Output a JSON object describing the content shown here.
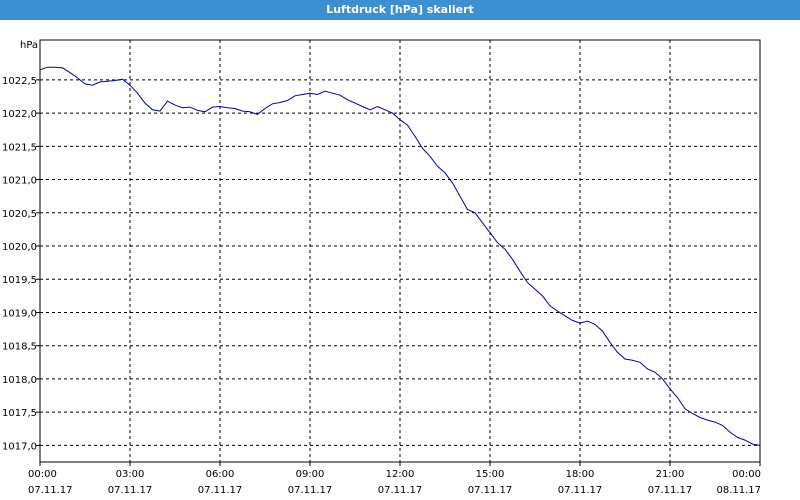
{
  "chart_data": {
    "type": "line",
    "title": "Luftdruck [hPa] skaliert",
    "ylabel": "hPa",
    "ylim": [
      1016.75,
      1023.1
    ],
    "xlim_hours": [
      0,
      24
    ],
    "grid": true,
    "y_ticks": [
      "1017,0",
      "1017,5",
      "1018,0",
      "1018,5",
      "1019,0",
      "1019,5",
      "1020,0",
      "1020,5",
      "1021,0",
      "1021,5",
      "1022,0",
      "1022,5"
    ],
    "y_tick_values": [
      1017.0,
      1017.5,
      1018.0,
      1018.5,
      1019.0,
      1019.5,
      1020.0,
      1020.5,
      1021.0,
      1021.5,
      1022.0,
      1022.5
    ],
    "x_ticks": [
      {
        "time": "00:00",
        "date": "07.11.17"
      },
      {
        "time": "03:00",
        "date": "07.11.17"
      },
      {
        "time": "06:00",
        "date": "07.11.17"
      },
      {
        "time": "09:00",
        "date": "07.11.17"
      },
      {
        "time": "12:00",
        "date": "07.11.17"
      },
      {
        "time": "15:00",
        "date": "07.11.17"
      },
      {
        "time": "18:00",
        "date": "07.11.17"
      },
      {
        "time": "21:00",
        "date": "07.11.17"
      },
      {
        "time": "00:00",
        "date": "08.11.17"
      }
    ],
    "series": [
      {
        "color": "#0000aa",
        "x_hours": [
          0.0,
          0.25,
          0.5,
          0.75,
          1.0,
          1.25,
          1.5,
          1.75,
          2.0,
          2.25,
          2.5,
          2.75,
          3.0,
          3.25,
          3.5,
          3.75,
          4.0,
          4.25,
          4.5,
          4.75,
          5.0,
          5.25,
          5.5,
          5.75,
          6.0,
          6.25,
          6.5,
          6.75,
          7.0,
          7.25,
          7.5,
          7.75,
          8.0,
          8.25,
          8.5,
          8.75,
          9.0,
          9.25,
          9.5,
          9.75,
          10.0,
          10.25,
          10.5,
          10.75,
          11.0,
          11.25,
          11.5,
          11.75,
          12.0,
          12.25,
          12.5,
          12.75,
          13.0,
          13.25,
          13.5,
          13.75,
          14.0,
          14.25,
          14.5,
          14.75,
          15.0,
          15.25,
          15.5,
          15.75,
          16.0,
          16.25,
          16.5,
          16.75,
          17.0,
          17.25,
          17.5,
          17.75,
          18.0,
          18.25,
          18.5,
          18.75,
          19.0,
          19.25,
          19.5,
          19.75,
          20.0,
          20.25,
          20.5,
          20.75,
          21.0,
          21.25,
          21.5,
          21.75,
          22.0,
          22.25,
          22.5,
          22.75,
          23.0,
          23.25,
          23.5,
          23.75,
          24.0
        ],
        "values": [
          1022.65,
          1022.69,
          1022.69,
          1022.68,
          1022.61,
          1022.53,
          1022.44,
          1022.42,
          1022.47,
          1022.48,
          1022.49,
          1022.51,
          1022.42,
          1022.3,
          1022.15,
          1022.05,
          1022.03,
          1022.18,
          1022.12,
          1022.08,
          1022.09,
          1022.04,
          1022.02,
          1022.09,
          1022.1,
          1022.08,
          1022.07,
          1022.03,
          1022.02,
          1021.98,
          1022.07,
          1022.14,
          1022.16,
          1022.19,
          1022.26,
          1022.28,
          1022.3,
          1022.28,
          1022.33,
          1022.3,
          1022.27,
          1022.2,
          1022.15,
          1022.1,
          1022.05,
          1022.1,
          1022.05,
          1022.0,
          1021.9,
          1021.82,
          1021.65,
          1021.47,
          1021.35,
          1021.2,
          1021.1,
          1020.95,
          1020.75,
          1020.55,
          1020.5,
          1020.35,
          1020.2,
          1020.05,
          1019.95,
          1019.8,
          1019.62,
          1019.45,
          1019.35,
          1019.25,
          1019.1,
          1019.02,
          1018.95,
          1018.88,
          1018.84,
          1018.87,
          1018.82,
          1018.72,
          1018.55,
          1018.4,
          1018.3,
          1018.28,
          1018.25,
          1018.15,
          1018.1,
          1018.0,
          1017.85,
          1017.72,
          1017.55,
          1017.48,
          1017.42,
          1017.38,
          1017.35,
          1017.3,
          1017.2,
          1017.12,
          1017.08,
          1017.02,
          1017.0
        ]
      }
    ]
  }
}
